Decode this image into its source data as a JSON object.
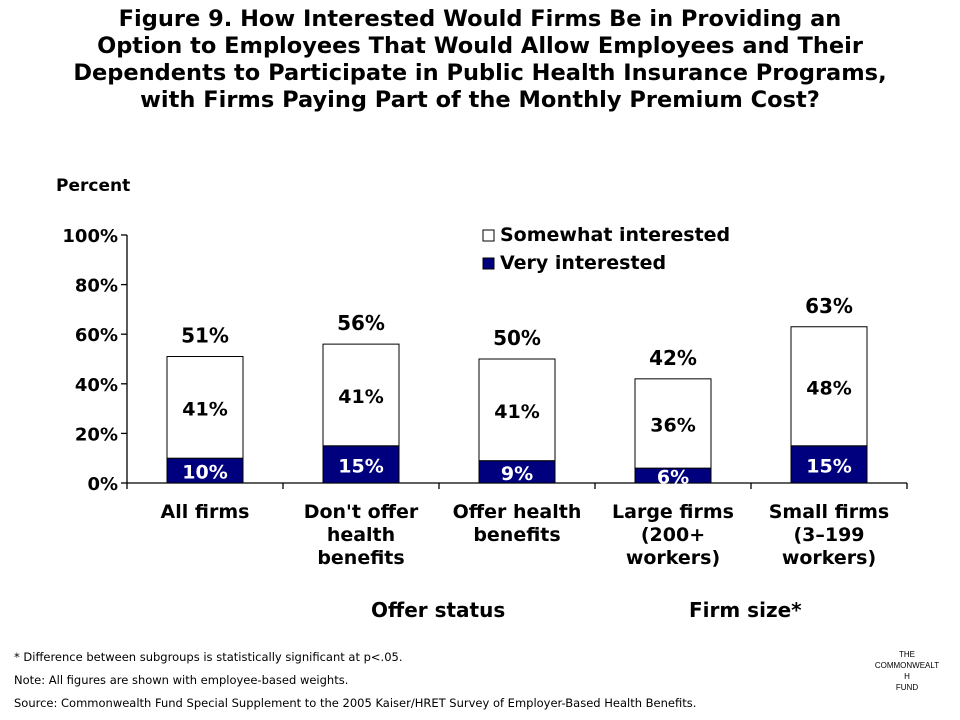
{
  "title": "Figure 9. How Interested Would Firms Be in Providing an\nOption to Employees That Would Allow Employees and Their\nDependents to Participate in Public Health Insurance Programs,\nwith Firms Paying Part of the Monthly Premium Cost?",
  "unit_label": "Percent",
  "group_labels": [
    "Offer status",
    "Firm size*"
  ],
  "notes": [
    "* Difference between subgroups is statistically significant at p<.05.",
    "Note: All figures are shown with employee-based weights.",
    "Source: Commonwealth Fund Special Supplement to the 2005 Kaiser/HRET Survey of Employer-Based Health Benefits."
  ],
  "logo_lines": [
    "THE",
    "COMMONWEALT",
    "H",
    "FUND"
  ],
  "chart_data": {
    "type": "bar",
    "stacked": true,
    "title": "Figure 9. How Interested Would Firms Be in Providing an Option to Employees That Would Allow Employees and Their Dependents to Participate in Public Health Insurance Programs, with Firms Paying Part of the Monthly Premium Cost?",
    "ylabel": "Percent",
    "ylim": [
      0,
      100
    ],
    "yticks": [
      0,
      20,
      40,
      60,
      80,
      100
    ],
    "ytick_labels": [
      "0%",
      "20%",
      "40%",
      "60%",
      "80%",
      "100%"
    ],
    "categories": [
      [
        "All firms"
      ],
      [
        "Don't offer",
        "health",
        "benefits"
      ],
      [
        "Offer health",
        "benefits"
      ],
      [
        "Large firms",
        "(200+",
        "workers)"
      ],
      [
        "Small firms",
        "(3–199",
        "workers)"
      ]
    ],
    "series": [
      {
        "name": "Very interested",
        "values": [
          10,
          15,
          9,
          6,
          15
        ],
        "labels": [
          "10%",
          "15%",
          "9%",
          "6%",
          "15%"
        ],
        "color": "#00007f"
      },
      {
        "name": "Somewhat interested",
        "values": [
          41,
          41,
          41,
          36,
          48
        ],
        "labels": [
          "41%",
          "41%",
          "41%",
          "36%",
          "48%"
        ],
        "color": "#ffffff"
      }
    ],
    "totals": [
      51,
      56,
      50,
      42,
      63
    ],
    "total_labels": [
      "51%",
      "56%",
      "50%",
      "42%",
      "63%"
    ],
    "legend_position": "top-right",
    "grid": false
  }
}
